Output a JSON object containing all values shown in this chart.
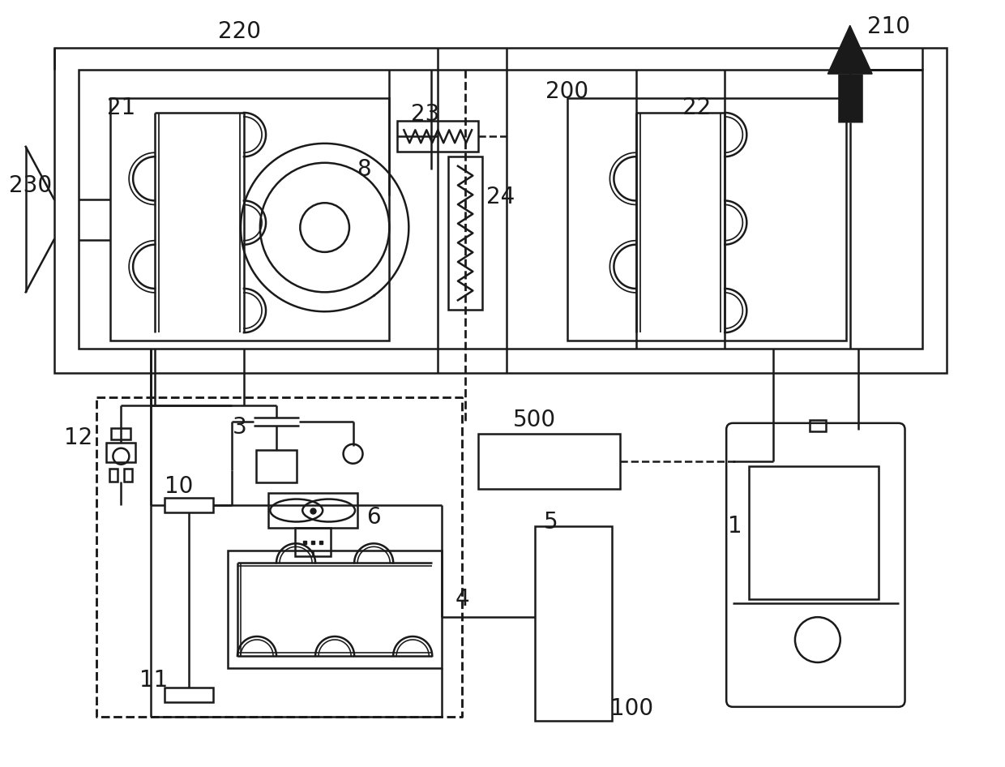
{
  "bg_color": "#ffffff",
  "lc": "#1a1a1a",
  "lw": 1.8,
  "lw_thick": 2.2,
  "fs": 20,
  "fig_w": 12.4,
  "fig_h": 9.46,
  "dpi": 100
}
